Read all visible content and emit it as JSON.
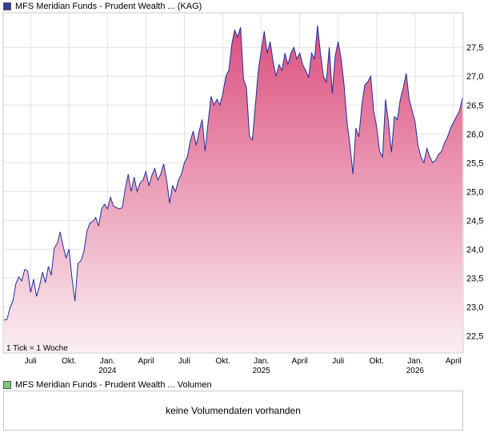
{
  "legend_main": {
    "label": "MFS Meridian Funds - Prudent Wealth ... (KAG)",
    "color": "#2e3e9e"
  },
  "legend_volume": {
    "label": "MFS Meridian Funds - Prudent Wealth ... Volumen",
    "color": "#7ec87e"
  },
  "tick_note": "1 Tick = 1 Woche",
  "volume_message": "keine Volumendaten vorhanden",
  "chart_data": {
    "type": "area",
    "title": "",
    "xlabel": "",
    "ylabel": "",
    "ylim": [
      22.2,
      28.1
    ],
    "y_ticks": [
      "22,5",
      "23,0",
      "23,5",
      "24,0",
      "24,5",
      "25,0",
      "25,5",
      "26,0",
      "26,5",
      "27,0",
      "27,5"
    ],
    "x_ticks": [
      {
        "label": "Juli",
        "week": 9,
        "year": ""
      },
      {
        "label": "Okt.",
        "week": 22,
        "year": ""
      },
      {
        "label": "Jan.",
        "week": 35,
        "year": "2024"
      },
      {
        "label": "April",
        "week": 48,
        "year": ""
      },
      {
        "label": "Juli",
        "week": 61,
        "year": ""
      },
      {
        "label": "Okt.",
        "week": 74,
        "year": ""
      },
      {
        "label": "Jan.",
        "week": 87,
        "year": "2025"
      },
      {
        "label": "April",
        "week": 100,
        "year": ""
      },
      {
        "label": "Juli",
        "week": 113,
        "year": ""
      },
      {
        "label": "Okt.",
        "week": 126,
        "year": ""
      },
      {
        "label": "Jan.",
        "week": 139,
        "year": "2026"
      },
      {
        "label": "April",
        "week": 152,
        "year": ""
      }
    ],
    "line_color": "#1f2f99",
    "fill_top_color": "#dc4f7e",
    "fill_bottom_color": "#fbeef3",
    "grid": true,
    "series": [
      {
        "name": "",
        "x": [
          0,
          1,
          2,
          3,
          4,
          5,
          6,
          7,
          8,
          9,
          10,
          11,
          12,
          13,
          14,
          15,
          16,
          17,
          18,
          19,
          20,
          21,
          22,
          23,
          24,
          25,
          26,
          27,
          28,
          29,
          30,
          31,
          32,
          33,
          34,
          35,
          36,
          37,
          38,
          39,
          40,
          41,
          42,
          43,
          44,
          45,
          46,
          47,
          48,
          49,
          50,
          51,
          52,
          53,
          54,
          55,
          56,
          57,
          58,
          59,
          60,
          61,
          62,
          63,
          64,
          65,
          66,
          67,
          68,
          69,
          70,
          71,
          72,
          73,
          74,
          75,
          76,
          77,
          78,
          79,
          80,
          81,
          82,
          83,
          84,
          85,
          86,
          87,
          88,
          89,
          90,
          91,
          92,
          93,
          94,
          95,
          96,
          97,
          98,
          99,
          100,
          101,
          102,
          103,
          104,
          105,
          106,
          107,
          108,
          109,
          110,
          111,
          112,
          113,
          114,
          115,
          116,
          117,
          118,
          119,
          120,
          121,
          122,
          123,
          124,
          125,
          126,
          127,
          128,
          129,
          130,
          131,
          132,
          133,
          134,
          135,
          136,
          137,
          138,
          139,
          140,
          141,
          142,
          143,
          144,
          145,
          146,
          147,
          148,
          149,
          150,
          151,
          152,
          153,
          154,
          155
        ],
        "y": [
          22.77,
          22.78,
          22.98,
          23.1,
          23.4,
          23.52,
          23.45,
          23.65,
          23.62,
          23.25,
          23.48,
          23.18,
          23.36,
          23.6,
          23.42,
          23.7,
          23.55,
          24.02,
          24.1,
          24.3,
          24.05,
          23.85,
          24.0,
          23.5,
          23.1,
          23.75,
          23.8,
          23.95,
          24.3,
          24.45,
          24.48,
          24.55,
          24.4,
          24.7,
          24.78,
          24.7,
          24.9,
          24.75,
          24.72,
          24.7,
          24.72,
          25.05,
          25.3,
          25.0,
          25.25,
          25.0,
          25.15,
          25.2,
          25.35,
          25.1,
          25.28,
          25.4,
          25.2,
          25.3,
          25.48,
          25.2,
          24.8,
          25.1,
          25.0,
          25.2,
          25.3,
          25.5,
          25.6,
          25.88,
          26.05,
          25.8,
          26.05,
          26.25,
          25.7,
          26.2,
          26.65,
          26.5,
          26.6,
          26.5,
          26.7,
          27.0,
          27.1,
          27.55,
          27.8,
          27.68,
          27.85,
          26.95,
          26.8,
          25.95,
          25.9,
          26.5,
          27.1,
          27.45,
          27.78,
          27.4,
          27.6,
          27.25,
          27.0,
          27.2,
          27.1,
          27.4,
          27.2,
          27.4,
          27.5,
          27.3,
          27.4,
          27.2,
          27.1,
          26.98,
          27.4,
          27.3,
          27.88,
          27.4,
          27.0,
          26.9,
          27.5,
          26.7,
          27.35,
          27.6,
          27.3,
          26.85,
          26.2,
          25.8,
          25.3,
          26.1,
          25.95,
          26.5,
          26.85,
          26.9,
          27.0,
          26.4,
          26.12,
          25.7,
          25.6,
          26.6,
          26.2,
          25.68,
          26.3,
          26.25,
          26.6,
          26.8,
          27.05,
          26.6,
          26.4,
          26.2,
          25.8,
          25.6,
          25.5,
          25.75,
          25.6,
          25.5,
          25.55,
          25.65,
          25.7,
          25.85,
          25.95,
          26.1,
          26.2,
          26.3,
          26.4,
          26.62
        ]
      }
    ]
  }
}
